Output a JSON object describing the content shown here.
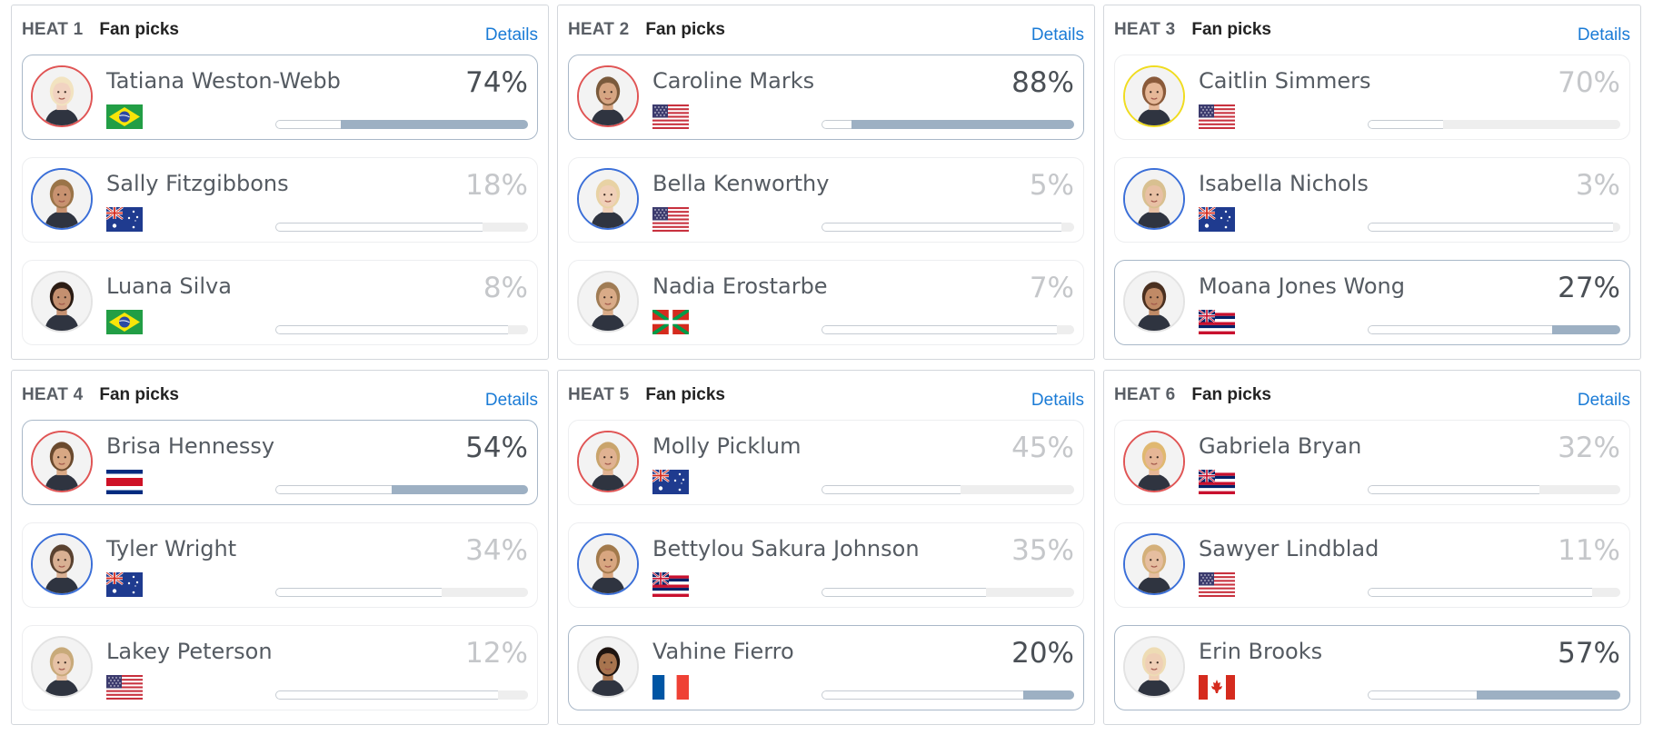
{
  "heats": [
    {
      "number": "HEAT 1",
      "title": "Fan picks",
      "details": "Details",
      "athletes": [
        {
          "name": "Tatiana Weston-Webb",
          "percent": "74%",
          "value": 74,
          "flag": "brazil-flag",
          "ring": "red",
          "selected": true,
          "skin": "#f1d3c1",
          "hair": "#f2e3c0"
        },
        {
          "name": "Sally Fitzgibbons",
          "percent": "18%",
          "value": 18,
          "flag": "australia-flag",
          "ring": "blue",
          "selected": false,
          "skin": "#c89270",
          "hair": "#9a7448"
        },
        {
          "name": "Luana Silva",
          "percent": "8%",
          "value": 8,
          "flag": "brazil-flag",
          "ring": "white",
          "selected": false,
          "skin": "#c49070",
          "hair": "#2b1c14"
        }
      ]
    },
    {
      "number": "HEAT 2",
      "title": "Fan picks",
      "details": "Details",
      "athletes": [
        {
          "name": "Caroline Marks",
          "percent": "88%",
          "value": 88,
          "flag": "usa-flag",
          "ring": "red",
          "selected": true,
          "skin": "#d6a582",
          "hair": "#7a5a3c"
        },
        {
          "name": "Bella Kenworthy",
          "percent": "5%",
          "value": 5,
          "flag": "usa-flag",
          "ring": "blue",
          "selected": false,
          "skin": "#f0d0b8",
          "hair": "#e8d2a4"
        },
        {
          "name": "Nadia Erostarbe",
          "percent": "7%",
          "value": 7,
          "flag": "basque-flag",
          "ring": "white",
          "selected": false,
          "skin": "#d9ab88",
          "hair": "#a07c55"
        }
      ]
    },
    {
      "number": "HEAT 3",
      "title": "Fan picks",
      "details": "Details",
      "athletes": [
        {
          "name": "Caitlin Simmers",
          "percent": "70%",
          "value": 70,
          "flag": "usa-flag",
          "ring": "yellow",
          "selected": false,
          "skin": "#e6b898",
          "hair": "#8a5a3a"
        },
        {
          "name": "Isabella Nichols",
          "percent": "3%",
          "value": 3,
          "flag": "australia-flag",
          "ring": "blue",
          "selected": false,
          "skin": "#e8c0a4",
          "hair": "#d8c090"
        },
        {
          "name": "Moana Jones Wong",
          "percent": "27%",
          "value": 27,
          "flag": "hawaii-flag",
          "ring": "white",
          "selected": true,
          "skin": "#c08a66",
          "hair": "#4a3020"
        }
      ]
    },
    {
      "number": "HEAT 4",
      "title": "Fan picks",
      "details": "Details",
      "athletes": [
        {
          "name": "Brisa Hennessy",
          "percent": "54%",
          "value": 54,
          "flag": "costa-rica-flag",
          "ring": "red",
          "selected": true,
          "skin": "#d8a884",
          "hair": "#6a4a2e"
        },
        {
          "name": "Tyler Wright",
          "percent": "34%",
          "value": 34,
          "flag": "australia-flag",
          "ring": "blue",
          "selected": false,
          "skin": "#d9b093",
          "hair": "#5a4230"
        },
        {
          "name": "Lakey Peterson",
          "percent": "12%",
          "value": 12,
          "flag": "usa-flag",
          "ring": "white",
          "selected": false,
          "skin": "#e6c2a6",
          "hair": "#c8aa7a"
        }
      ]
    },
    {
      "number": "HEAT 5",
      "title": "Fan picks",
      "details": "Details",
      "athletes": [
        {
          "name": "Molly Picklum",
          "percent": "45%",
          "value": 45,
          "flag": "australia-flag",
          "ring": "red",
          "selected": false,
          "skin": "#e0b292",
          "hair": "#c9a46c"
        },
        {
          "name": "Bettylou Sakura Johnson",
          "percent": "35%",
          "value": 35,
          "flag": "hawaii-flag",
          "ring": "blue",
          "selected": false,
          "skin": "#d8a680",
          "hair": "#a27a4c"
        },
        {
          "name": "Vahine Fierro",
          "percent": "20%",
          "value": 20,
          "flag": "france-flag",
          "ring": "white",
          "selected": true,
          "skin": "#a8744e",
          "hair": "#1e1410"
        }
      ]
    },
    {
      "number": "HEAT 6",
      "title": "Fan picks",
      "details": "Details",
      "athletes": [
        {
          "name": "Gabriela Bryan",
          "percent": "32%",
          "value": 32,
          "flag": "hawaii-flag",
          "ring": "red",
          "selected": false,
          "skin": "#e6b696",
          "hair": "#e0b870"
        },
        {
          "name": "Sawyer Lindblad",
          "percent": "11%",
          "value": 11,
          "flag": "usa-flag",
          "ring": "blue",
          "selected": false,
          "skin": "#e6bea0",
          "hair": "#d4b07a"
        },
        {
          "name": "Erin Brooks",
          "percent": "57%",
          "value": 57,
          "flag": "canada-flag",
          "ring": "white",
          "selected": true,
          "skin": "#efcfb6",
          "hair": "#eedcb4"
        }
      ]
    }
  ]
}
